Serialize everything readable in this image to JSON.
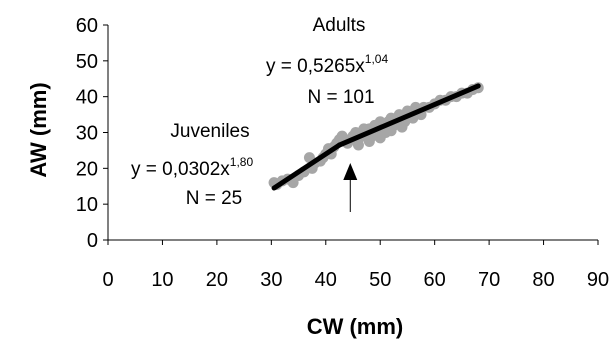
{
  "chart_data": {
    "type": "scatter",
    "xlabel": "CW (mm)",
    "ylabel": "AW (mm)",
    "xlim": [
      0,
      90
    ],
    "ylim": [
      0,
      60
    ],
    "xticks": [
      0,
      10,
      20,
      30,
      40,
      50,
      60,
      70,
      80,
      90
    ],
    "yticks": [
      0,
      10,
      20,
      30,
      40,
      50,
      60
    ],
    "grid": false,
    "colors": {
      "points": "#a6a6a6",
      "fit_line": "#000000"
    },
    "annotations": {
      "adults": {
        "label": "Adults",
        "equation_base": "y = 0,5265x",
        "equation_exp": "1,04",
        "n": "N = 101"
      },
      "juveniles": {
        "label": "Juveniles",
        "equation_base": "y = 0,0302x",
        "equation_exp": "1,80",
        "n": "N = 25"
      }
    },
    "arrow_at_x": 44.5,
    "fit_lines": [
      {
        "name": "Juveniles",
        "x": [
          30.5,
          42.5
        ],
        "y": [
          14.5,
          26.5
        ]
      },
      {
        "name": "Adults",
        "x": [
          42.5,
          68
        ],
        "y": [
          26.5,
          43
        ]
      }
    ],
    "points": {
      "x": [
        30.5,
        31,
        32,
        33,
        34,
        35,
        36,
        37,
        37.5,
        38,
        39,
        39.5,
        40,
        40.5,
        41,
        41.5,
        42,
        42.5,
        43,
        43.5,
        44,
        44.5,
        45,
        45.5,
        46,
        46.5,
        47,
        47.5,
        48,
        48.5,
        49,
        49.5,
        50,
        50.5,
        51,
        51.5,
        52,
        52.5,
        53,
        53.5,
        54,
        54.5,
        55,
        55.5,
        56,
        56.5,
        57,
        57.5,
        58,
        59,
        60,
        61,
        62,
        63,
        64,
        65,
        66,
        67,
        68,
        46,
        48,
        50,
        52,
        54
      ],
      "y": [
        16,
        15.5,
        16.5,
        17,
        16,
        18,
        19,
        23,
        20,
        21.5,
        22,
        23,
        24,
        25.5,
        24,
        26,
        27,
        28,
        29,
        27.5,
        27,
        28,
        29,
        30,
        28,
        29,
        31,
        30,
        31,
        29,
        32,
        31,
        33,
        32,
        30,
        33,
        34,
        32,
        33,
        35,
        34,
        33,
        36,
        35,
        34,
        37,
        36,
        35,
        37,
        37,
        38,
        39,
        39,
        40,
        40,
        41,
        41,
        42,
        42.5,
        26.5,
        27.5,
        28.5,
        30.5,
        31.5
      ]
    }
  }
}
